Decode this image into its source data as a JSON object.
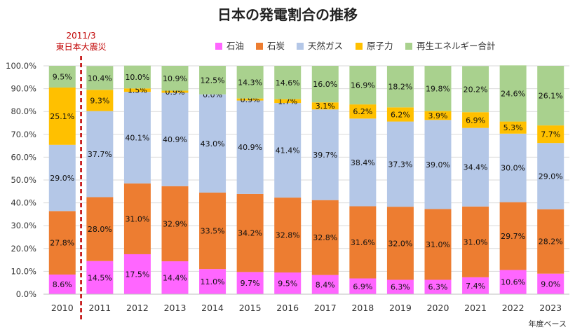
{
  "chart_data": {
    "type": "bar",
    "stacked": true,
    "title": "日本の発電割合の推移",
    "categories": [
      "2010",
      "2011",
      "2012",
      "2013",
      "2014",
      "2015",
      "2016",
      "2017",
      "2018",
      "2019",
      "2020",
      "2021",
      "2022",
      "2023"
    ],
    "series": [
      {
        "name": "石油",
        "color": "#ff66ff",
        "values": [
          8.6,
          14.5,
          17.5,
          14.4,
          11.0,
          9.7,
          9.5,
          8.4,
          6.9,
          6.3,
          6.3,
          7.4,
          10.6,
          9.0
        ],
        "labels": [
          "8.6%",
          "14.5%",
          "17.5%",
          "14.4%",
          "11.0%",
          "9.7%",
          "9.5%",
          "8.4%",
          "6.9%",
          "6.3%",
          "6.3%",
          "7.4%",
          "10.6%",
          "9.0%"
        ]
      },
      {
        "name": "石炭",
        "color": "#ed7d31",
        "values": [
          27.8,
          28.0,
          31.0,
          32.9,
          33.5,
          34.2,
          32.8,
          32.8,
          31.6,
          32.0,
          31.0,
          31.0,
          29.7,
          28.2
        ],
        "labels": [
          "27.8%",
          "28.0%",
          "31.0%",
          "32.9%",
          "33.5%",
          "34.2%",
          "32.8%",
          "32.8%",
          "31.6%",
          "32.0%",
          "31.0%",
          "31.0%",
          "29.7%",
          "28.2%"
        ]
      },
      {
        "name": "天然ガス",
        "color": "#b4c7e7",
        "values": [
          29.0,
          37.7,
          40.1,
          40.9,
          43.0,
          40.9,
          41.4,
          39.7,
          38.4,
          37.3,
          39.0,
          34.4,
          30.0,
          29.0
        ],
        "labels": [
          "29.0%",
          "37.7%",
          "40.1%",
          "40.9%",
          "43.0%",
          "40.9%",
          "41.4%",
          "39.7%",
          "38.4%",
          "37.3%",
          "39.0%",
          "34.4%",
          "30.0%",
          "29.0%"
        ]
      },
      {
        "name": "原子力",
        "color": "#ffc000",
        "values": [
          25.1,
          9.3,
          1.5,
          0.9,
          0.0,
          0.9,
          1.7,
          3.1,
          6.2,
          6.2,
          3.9,
          6.9,
          5.3,
          7.7
        ],
        "labels": [
          "25.1%",
          "9.3%",
          "1.5%",
          "0.9%",
          "0.0%",
          "0.9%",
          "1.7%",
          "3.1%",
          "6.2%",
          "6.2%",
          "3.9%",
          "6.9%",
          "5.3%",
          "7.7%"
        ]
      },
      {
        "name": "再生エネルギー合計",
        "color": "#a9d18e",
        "values": [
          9.5,
          10.4,
          10.0,
          10.9,
          12.5,
          14.3,
          14.6,
          16.0,
          16.9,
          18.2,
          19.8,
          20.2,
          24.6,
          26.1
        ],
        "labels": [
          "9.5%",
          "10.4%",
          "10.0%",
          "10.9%",
          "12.5%",
          "14.3%",
          "14.6%",
          "16.0%",
          "16.9%",
          "18.2%",
          "19.8%",
          "20.2%",
          "24.6%",
          "26.1%"
        ]
      }
    ],
    "yticks": [
      0,
      10,
      20,
      30,
      40,
      50,
      60,
      70,
      80,
      90,
      100
    ],
    "ytick_labels": [
      "0.0%",
      "10.0%",
      "20.0%",
      "30.0%",
      "40.0%",
      "50.0%",
      "60.0%",
      "70.0%",
      "80.0%",
      "90.0%",
      "100.0%"
    ],
    "ylim": [
      0,
      100
    ],
    "xlabel": "",
    "ylabel": "",
    "legend_position": "top",
    "unit_note": "年度ベース",
    "annotation": {
      "date": "2011/3",
      "text": "東日本大震災",
      "between": [
        "2010",
        "2011"
      ],
      "color": "#c00000"
    }
  }
}
